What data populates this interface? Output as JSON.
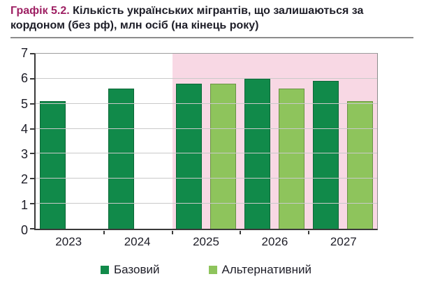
{
  "title": {
    "prefix": "Графік 5.2.",
    "text": "Кількість українських мігрантів, що залишаються за кордоном (без рф), млн осіб (на кінець року)"
  },
  "chart_data": {
    "type": "bar",
    "title": "Кількість українських мігрантів, що залишаються за кордоном (без рф), млн осіб (на кінець року)",
    "categories": [
      "2023",
      "2024",
      "2025",
      "2026",
      "2027"
    ],
    "series": [
      {
        "key": "base",
        "name": "Базовий",
        "color": "#118a4a",
        "values": [
          5.1,
          5.6,
          5.8,
          6.0,
          5.9
        ]
      },
      {
        "key": "alt",
        "name": "Альтернативний",
        "color": "#8ec45c",
        "values": [
          null,
          null,
          5.8,
          5.6,
          5.1
        ]
      }
    ],
    "ylim": [
      0,
      7
    ],
    "ytick_step": 1,
    "grid": true,
    "legend_position": "bottom",
    "forecast_band": {
      "from_category": "2025",
      "color": "#f8d8e4"
    },
    "xlabel": "",
    "ylabel": ""
  },
  "colors": {
    "title_number": "#9e2063",
    "text": "#1d1d27",
    "axis": "#3a3a3a",
    "plot_border": "#9c9c9c",
    "gridline": "#c9c9c9",
    "divider": "#8b8b8b",
    "forecast_band": "#f8d8e4",
    "base_series": "#118a4a",
    "alt_series": "#8ec45c"
  }
}
